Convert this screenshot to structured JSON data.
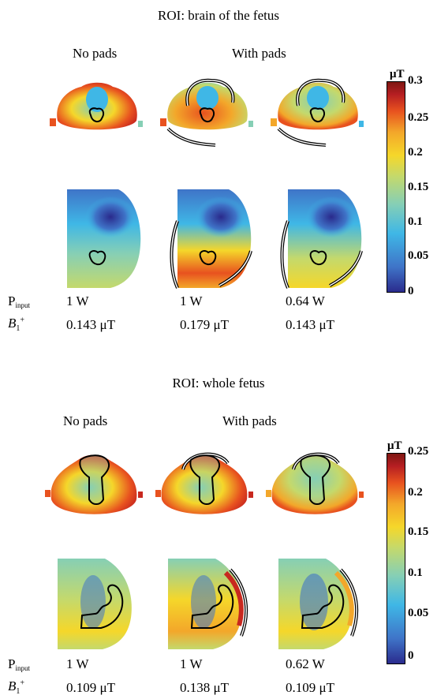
{
  "colorbar_colors": [
    "#2a2a8c",
    "#3f74c8",
    "#3fb7e6",
    "#86cfb5",
    "#c4d96c",
    "#f5d72a",
    "#f3a72a",
    "#e8521f",
    "#b51e22",
    "#7d1712"
  ],
  "outline_color": "#000000",
  "section1": {
    "title": "ROI: brain of the fetus",
    "col_no_pads": "No pads",
    "col_with_pads": "With pads",
    "unit": "μT",
    "colorbar_ticks": [
      "0.3",
      "0.25",
      "0.2",
      "0.15",
      "0.1",
      "0.05",
      "0"
    ],
    "p_label": "P",
    "p_sub": "input",
    "b_label": "B",
    "b_sub": "1",
    "b_sup": "+",
    "p_values": [
      "1 W",
      "1 W",
      "0.64 W"
    ],
    "b_values": [
      "0.143 μT",
      "0.179 μT",
      "0.143 μT"
    ]
  },
  "section2": {
    "title": "ROI: whole fetus",
    "col_no_pads": "No pads",
    "col_with_pads": "With pads",
    "unit": "μT",
    "colorbar_ticks": [
      "0.25",
      "0.2",
      "0.15",
      "0.1",
      "0.05",
      "0"
    ],
    "p_label": "P",
    "p_sub": "input",
    "b_label": "B",
    "b_sub": "1",
    "b_sup": "+",
    "p_values": [
      "1 W",
      "1 W",
      "0.62 W"
    ],
    "b_values": [
      "0.109 μT",
      "0.138 μT",
      "0.109 μT"
    ]
  }
}
